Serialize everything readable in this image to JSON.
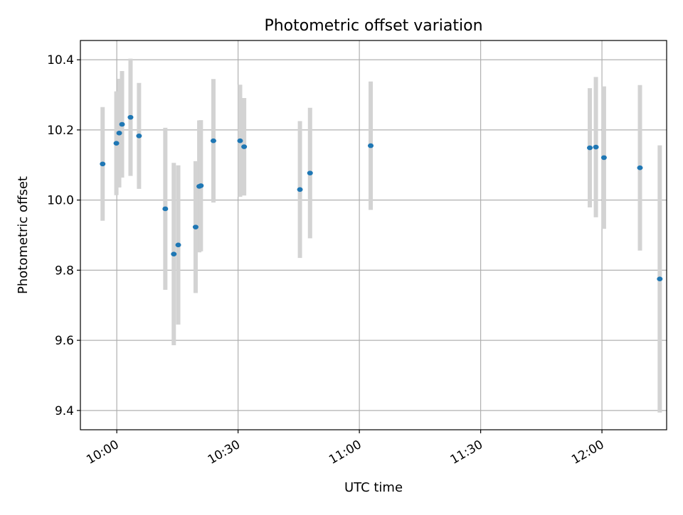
{
  "chart_data": {
    "type": "scatter",
    "title": "Photometric offset variation",
    "xlabel": "UTC time",
    "ylabel": "Photometric offset",
    "x_unit": "HH:MM UTC",
    "xlim": [
      "09:51",
      "12:16"
    ],
    "ylim": [
      9.345,
      10.455
    ],
    "xticks": [
      "10:00",
      "10:30",
      "11:00",
      "11:30",
      "12:00"
    ],
    "yticks": [
      9.4,
      9.6,
      9.8,
      10.0,
      10.2,
      10.4
    ],
    "ytick_labels": [
      "9.4",
      "9.6",
      "9.8",
      "10.0",
      "10.2",
      "10.4"
    ],
    "grid": true,
    "colors": {
      "point": "#1f77b4",
      "errorbar": "#d3d3d3",
      "grid": "#b0b0b0"
    },
    "points": [
      {
        "time": "09:56:30",
        "value": 10.103,
        "err": 0.162
      },
      {
        "time": "09:59:54",
        "value": 10.162,
        "err": 0.148
      },
      {
        "time": "10:00:36",
        "value": 10.191,
        "err": 0.155
      },
      {
        "time": "10:01:18",
        "value": 10.216,
        "err": 0.152
      },
      {
        "time": "10:03:24",
        "value": 10.236,
        "err": 0.167
      },
      {
        "time": "10:05:30",
        "value": 10.183,
        "err": 0.151
      },
      {
        "time": "10:12:00",
        "value": 9.975,
        "err": 0.231
      },
      {
        "time": "10:14:06",
        "value": 9.846,
        "err": 0.26
      },
      {
        "time": "10:15:12",
        "value": 9.872,
        "err": 0.227
      },
      {
        "time": "10:19:30",
        "value": 9.923,
        "err": 0.188
      },
      {
        "time": "10:20:24",
        "value": 10.039,
        "err": 0.188
      },
      {
        "time": "10:20:48",
        "value": 10.041,
        "err": 0.187
      },
      {
        "time": "10:23:54",
        "value": 10.169,
        "err": 0.176
      },
      {
        "time": "10:30:30",
        "value": 10.169,
        "err": 0.16
      },
      {
        "time": "10:31:30",
        "value": 10.152,
        "err": 0.139
      },
      {
        "time": "10:45:18",
        "value": 10.03,
        "err": 0.195
      },
      {
        "time": "10:47:48",
        "value": 10.077,
        "err": 0.186
      },
      {
        "time": "11:02:48",
        "value": 10.155,
        "err": 0.183
      },
      {
        "time": "11:57:00",
        "value": 10.149,
        "err": 0.17
      },
      {
        "time": "11:58:30",
        "value": 10.151,
        "err": 0.2
      },
      {
        "time": "12:00:30",
        "value": 10.121,
        "err": 0.203
      },
      {
        "time": "12:09:24",
        "value": 10.092,
        "err": 0.236
      },
      {
        "time": "12:14:18",
        "value": 9.775,
        "err": 0.381
      }
    ]
  }
}
